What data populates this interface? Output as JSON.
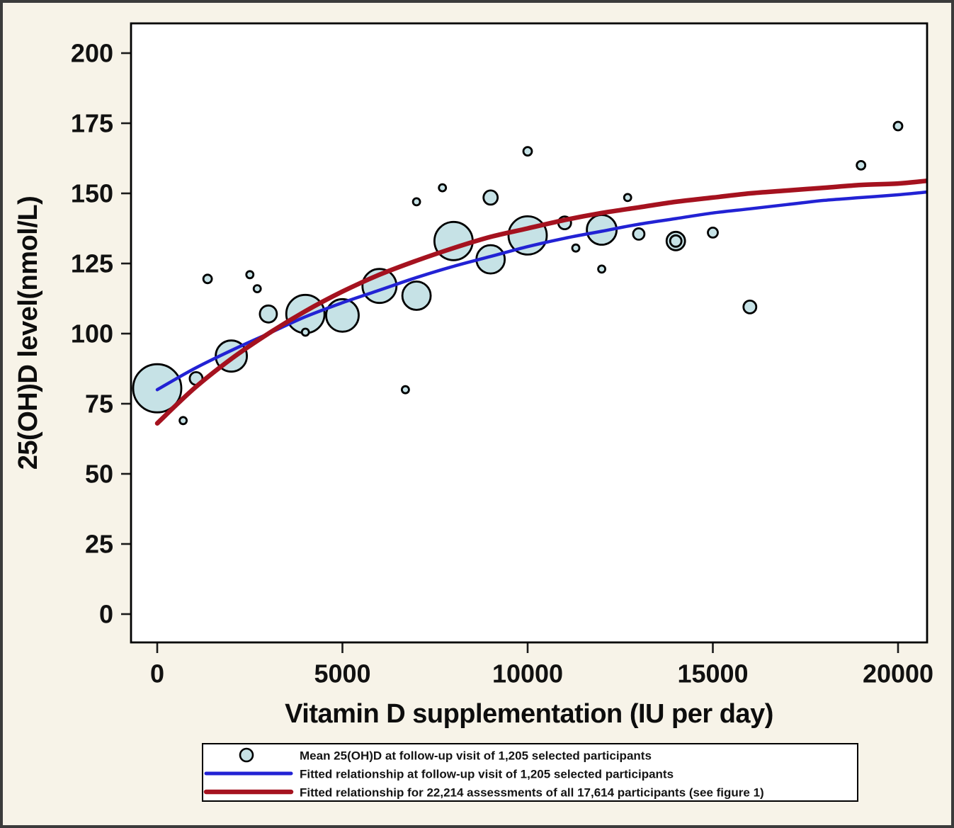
{
  "chart_data": {
    "type": "scatter",
    "title": "",
    "xlabel": "Vitamin D supplementation (IU per day)",
    "ylabel": "25(OH)D level(nmol/L)",
    "x_ticks": [
      0,
      5000,
      10000,
      15000,
      20000
    ],
    "x_tick_labels": [
      "0",
      "5000",
      "10000",
      "15000",
      "20000"
    ],
    "y_ticks": [
      0,
      25,
      50,
      75,
      100,
      125,
      150,
      175,
      200
    ],
    "y_tick_labels": [
      "0",
      "25",
      "50",
      "75",
      "100",
      "125",
      "150",
      "175",
      "200"
    ],
    "xlim": [
      -700,
      20800
    ],
    "ylim": [
      -10.5,
      210.5
    ],
    "grid": false,
    "legend_position": "bottom-center",
    "series": [
      {
        "name": "Mean 25(OH)D at follow-up visit of 1,205 selected participants",
        "type": "bubble",
        "fill": "#c6e2e6",
        "stroke": "#000000",
        "points": [
          {
            "x": 0,
            "y": 80.5,
            "r": 34
          },
          {
            "x": 700,
            "y": 69,
            "r": 5
          },
          {
            "x": 1050,
            "y": 84,
            "r": 9
          },
          {
            "x": 1360,
            "y": 119.5,
            "r": 6
          },
          {
            "x": 2000,
            "y": 92,
            "r": 22
          },
          {
            "x": 2500,
            "y": 121,
            "r": 5
          },
          {
            "x": 2700,
            "y": 116,
            "r": 5
          },
          {
            "x": 3000,
            "y": 107,
            "r": 12
          },
          {
            "x": 4000,
            "y": 107,
            "r": 27
          },
          {
            "x": 4000,
            "y": 100.5,
            "r": 5
          },
          {
            "x": 5000,
            "y": 106.5,
            "r": 23
          },
          {
            "x": 6000,
            "y": 117,
            "r": 24
          },
          {
            "x": 6700,
            "y": 80,
            "r": 5
          },
          {
            "x": 7000,
            "y": 147,
            "r": 5
          },
          {
            "x": 7000,
            "y": 113.5,
            "r": 20
          },
          {
            "x": 7700,
            "y": 152,
            "r": 5
          },
          {
            "x": 8000,
            "y": 133,
            "r": 27
          },
          {
            "x": 9000,
            "y": 148.5,
            "r": 10
          },
          {
            "x": 9000,
            "y": 126.5,
            "r": 20
          },
          {
            "x": 10000,
            "y": 165,
            "r": 6
          },
          {
            "x": 10000,
            "y": 135,
            "r": 27
          },
          {
            "x": 11000,
            "y": 139.5,
            "r": 9
          },
          {
            "x": 11300,
            "y": 130.5,
            "r": 5
          },
          {
            "x": 12000,
            "y": 137,
            "r": 21
          },
          {
            "x": 12000,
            "y": 123,
            "r": 5
          },
          {
            "x": 12700,
            "y": 148.5,
            "r": 5
          },
          {
            "x": 13000,
            "y": 135.5,
            "r": 8
          },
          {
            "x": 14000,
            "y": 133,
            "r": 13
          },
          {
            "x": 14000,
            "y": 133,
            "r": 8
          },
          {
            "x": 15000,
            "y": 136,
            "r": 7
          },
          {
            "x": 16000,
            "y": 109.5,
            "r": 9
          },
          {
            "x": 19000,
            "y": 160,
            "r": 6
          },
          {
            "x": 20000,
            "y": 174,
            "r": 6
          }
        ]
      },
      {
        "name": "Fitted relationship at follow-up visit of 1,205 selected participants",
        "type": "line",
        "color": "#2222d4",
        "stroke_width": 4.5,
        "x": [
          0,
          1000,
          2000,
          3000,
          4000,
          5000,
          6000,
          7000,
          8000,
          9000,
          10000,
          11000,
          12000,
          13000,
          14000,
          15000,
          16000,
          17000,
          18000,
          19000,
          20000,
          20800
        ],
        "y": [
          80,
          87.5,
          94,
          100,
          106,
          111,
          115.5,
          120,
          124,
          127.5,
          131,
          134,
          136.5,
          139,
          141,
          143,
          144.5,
          146,
          147.5,
          148.5,
          149.5,
          150.5
        ]
      },
      {
        "name": "Fitted relationship for 22,214 assessments of all 17,614 participants (see figure 1)",
        "type": "line",
        "color": "#a5121f",
        "stroke_width": 6.5,
        "x": [
          0,
          1000,
          2000,
          3000,
          4000,
          5000,
          6000,
          7000,
          8000,
          9000,
          10000,
          11000,
          12000,
          13000,
          14000,
          15000,
          16000,
          17000,
          18000,
          19000,
          20000,
          20800
        ],
        "y": [
          68,
          80.5,
          91,
          100,
          108,
          115,
          121,
          126,
          130.5,
          134.5,
          137.5,
          140.5,
          143,
          145,
          147,
          148.5,
          150,
          151,
          152,
          153,
          153.5,
          154.5
        ]
      }
    ]
  }
}
